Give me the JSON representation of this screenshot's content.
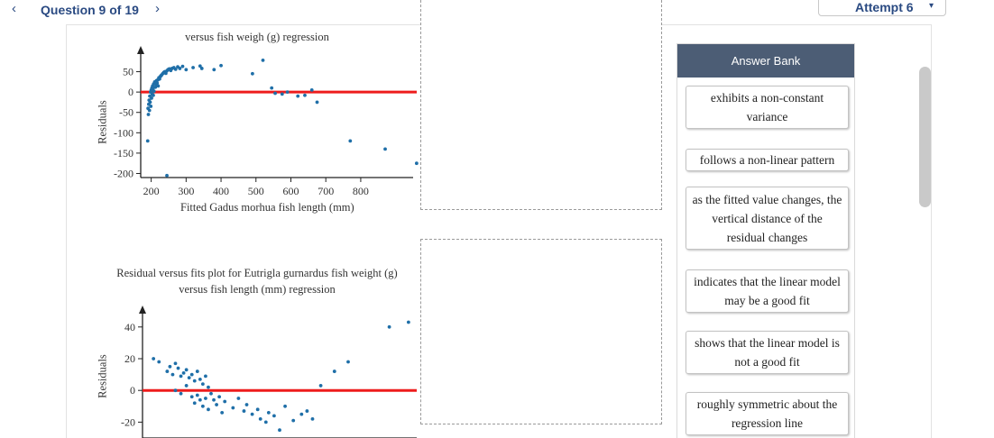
{
  "nav": {
    "prev_icon": "‹",
    "next_icon": "›",
    "question_label": "Question 9 of 19",
    "attempt_label": "Attempt 6",
    "attempt_caret": "▾"
  },
  "charts": [
    {
      "title_line2": "versus fish weigh (g) regression",
      "ylabel": "Residuals",
      "xlabel": "Fitted Gadus morhua fish length (mm)",
      "chart_data": {
        "type": "scatter",
        "title": "versus fish weigh (g) regression",
        "xlabel": "Fitted Gadus morhua fish length (mm)",
        "ylabel": "Residuals",
        "xlim": [
          170,
          950
        ],
        "ylim": [
          -210,
          80
        ],
        "xticks": [
          200,
          300,
          400,
          500,
          600,
          700,
          800
        ],
        "yticks": [
          50,
          0,
          -50,
          -100,
          -150,
          -200
        ],
        "reference_line": {
          "y": 0,
          "color": "#ee1c1c"
        },
        "point_color": "#1f6fa8",
        "points": [
          [
            191,
            -40
          ],
          [
            192,
            -55
          ],
          [
            193,
            -30
          ],
          [
            194,
            -20
          ],
          [
            195,
            -45
          ],
          [
            196,
            -10
          ],
          [
            197,
            -25
          ],
          [
            198,
            0
          ],
          [
            199,
            -35
          ],
          [
            200,
            5
          ],
          [
            201,
            -15
          ],
          [
            202,
            10
          ],
          [
            203,
            -5
          ],
          [
            204,
            15
          ],
          [
            205,
            8
          ],
          [
            206,
            -8
          ],
          [
            207,
            20
          ],
          [
            208,
            2
          ],
          [
            210,
            25
          ],
          [
            212,
            12
          ],
          [
            214,
            18
          ],
          [
            215,
            28
          ],
          [
            217,
            22
          ],
          [
            219,
            30
          ],
          [
            220,
            15
          ],
          [
            222,
            35
          ],
          [
            224,
            32
          ],
          [
            226,
            38
          ],
          [
            228,
            40
          ],
          [
            230,
            42
          ],
          [
            233,
            45
          ],
          [
            236,
            48
          ],
          [
            239,
            50
          ],
          [
            242,
            46
          ],
          [
            245,
            52
          ],
          [
            248,
            55
          ],
          [
            252,
            57
          ],
          [
            256,
            53
          ],
          [
            260,
            58
          ],
          [
            265,
            60
          ],
          [
            270,
            56
          ],
          [
            276,
            62
          ],
          [
            282,
            58
          ],
          [
            290,
            63
          ],
          [
            300,
            55
          ],
          [
            320,
            60
          ],
          [
            340,
            64
          ],
          [
            345,
            58
          ],
          [
            380,
            55
          ],
          [
            400,
            65
          ],
          [
            490,
            45
          ],
          [
            520,
            78
          ],
          [
            545,
            10
          ],
          [
            555,
            -3
          ],
          [
            575,
            -5
          ],
          [
            590,
            0
          ],
          [
            620,
            -10
          ],
          [
            640,
            -8
          ],
          [
            660,
            5
          ],
          [
            675,
            -25
          ],
          [
            190,
            -120
          ],
          [
            245,
            -205
          ],
          [
            770,
            -120
          ],
          [
            870,
            -140
          ],
          [
            960,
            -175
          ]
        ]
      }
    },
    {
      "title_line1": "Residual versus fits plot for Eutrigla gurnardus fish weight (g)",
      "title_line2": "versus fish length (mm) regression",
      "ylabel": "Residuals",
      "chart_data": {
        "type": "scatter",
        "title": "Residual versus fits plot for Eutrigla gurnardus fish weight (g) versus fish length (mm) regression",
        "ylabel": "Residuals",
        "xlim": [
          0,
          100
        ],
        "ylim": [
          -30,
          45
        ],
        "yticks": [
          40,
          20,
          0,
          -20
        ],
        "reference_line": {
          "y": 0,
          "color": "#ee1c1c"
        },
        "point_color": "#1f6fa8",
        "points": [
          [
            4,
            20
          ],
          [
            6,
            18
          ],
          [
            10,
            15
          ],
          [
            12,
            17
          ],
          [
            9,
            12
          ],
          [
            11,
            10
          ],
          [
            13,
            14
          ],
          [
            14,
            9
          ],
          [
            15,
            11
          ],
          [
            16,
            13
          ],
          [
            17,
            8
          ],
          [
            18,
            10
          ],
          [
            19,
            6
          ],
          [
            20,
            12
          ],
          [
            21,
            7
          ],
          [
            22,
            4
          ],
          [
            23,
            9
          ],
          [
            24,
            2
          ],
          [
            12,
            0
          ],
          [
            14,
            -2
          ],
          [
            16,
            3
          ],
          [
            18,
            -4
          ],
          [
            19,
            -8
          ],
          [
            20,
            -3
          ],
          [
            21,
            -6
          ],
          [
            22,
            -10
          ],
          [
            23,
            -5
          ],
          [
            24,
            -12
          ],
          [
            25,
            -2
          ],
          [
            26,
            -6
          ],
          [
            27,
            -9
          ],
          [
            28,
            -4
          ],
          [
            29,
            -14
          ],
          [
            30,
            -7
          ],
          [
            33,
            -11
          ],
          [
            35,
            -5
          ],
          [
            37,
            -13
          ],
          [
            38,
            -9
          ],
          [
            40,
            -15
          ],
          [
            42,
            -12
          ],
          [
            43,
            -18
          ],
          [
            45,
            -20
          ],
          [
            46,
            -14
          ],
          [
            48,
            -16
          ],
          [
            50,
            -25
          ],
          [
            52,
            -10
          ],
          [
            55,
            -19
          ],
          [
            58,
            -15
          ],
          [
            60,
            -13
          ],
          [
            62,
            -18
          ],
          [
            65,
            3
          ],
          [
            70,
            12
          ],
          [
            75,
            18
          ],
          [
            90,
            40
          ],
          [
            97,
            43
          ]
        ]
      }
    }
  ],
  "answer_bank": {
    "title": "Answer Bank",
    "items": [
      {
        "id": "nonconstant",
        "text": "exhibits a non-constant variance"
      },
      {
        "id": "nonlinear",
        "text": "follows a non-linear pattern"
      },
      {
        "id": "vertical",
        "text": "as the fitted value changes, the vertical distance of the residual changes"
      },
      {
        "id": "goodfit",
        "text": "indicates that the linear model may be a good fit"
      },
      {
        "id": "notgood",
        "text": "shows that the linear model is not a good fit"
      },
      {
        "id": "symmetric",
        "text": "roughly symmetric about the regression line"
      }
    ]
  }
}
